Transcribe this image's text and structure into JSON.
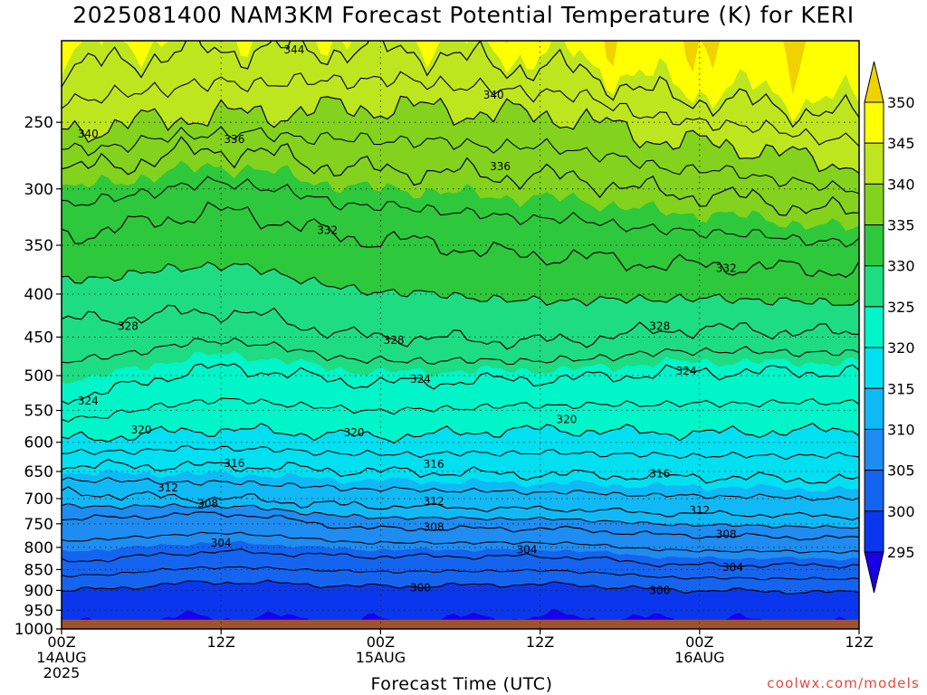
{
  "chart_data": {
    "type": "heatmap",
    "title": "2025081400 NAM3KM Forecast Potential Temperature (K) for KERI",
    "xlabel": "Forecast Time (UTC)",
    "ylabel": "",
    "x_ticks": [
      {
        "hour": 0,
        "lines": [
          "00Z",
          "14AUG",
          "2025"
        ]
      },
      {
        "hour": 12,
        "lines": [
          "12Z"
        ]
      },
      {
        "hour": 24,
        "lines": [
          "00Z",
          "15AUG"
        ]
      },
      {
        "hour": 36,
        "lines": [
          "12Z"
        ]
      },
      {
        "hour": 48,
        "lines": [
          "00Z",
          "16AUG"
        ]
      },
      {
        "hour": 60,
        "lines": [
          "12Z"
        ]
      }
    ],
    "xlim": [
      0,
      60
    ],
    "y_ticks": [
      250,
      300,
      350,
      400,
      450,
      500,
      550,
      600,
      650,
      700,
      750,
      800,
      850,
      900,
      950,
      1000
    ],
    "ylim": [
      1000,
      200
    ],
    "y_scale": "log-pressure",
    "grid": true,
    "surface_pressure": 975,
    "colorbar": {
      "levels": [
        295,
        300,
        305,
        310,
        315,
        320,
        325,
        330,
        335,
        340,
        345,
        350
      ],
      "colors": [
        "#1a00e6",
        "#0a37ee",
        "#1464f0",
        "#1e8cf0",
        "#10b9f5",
        "#00e0f0",
        "#00f5c8",
        "#1edc82",
        "#2dc83c",
        "#82d21e",
        "#bee61e",
        "#ffff00",
        "#f0d200"
      ]
    },
    "isentropes": [
      {
        "theta": 300,
        "pressure_at": {
          "h0": 900,
          "h12": 880,
          "h24": 890,
          "h36": 885,
          "h48": 900,
          "h60": 905
        }
      },
      {
        "theta": 304,
        "pressure_at": {
          "h0": 830,
          "h12": 810,
          "h24": 820,
          "h36": 820,
          "h48": 840,
          "h60": 840
        }
      },
      {
        "theta": 308,
        "pressure_at": {
          "h0": 740,
          "h12": 730,
          "h24": 760,
          "h36": 760,
          "h48": 775,
          "h60": 780
        }
      },
      {
        "theta": 312,
        "pressure_at": {
          "h0": 690,
          "h12": 700,
          "h24": 715,
          "h36": 720,
          "h48": 730,
          "h60": 735
        }
      },
      {
        "theta": 316,
        "pressure_at": {
          "h0": 640,
          "h12": 640,
          "h24": 650,
          "h36": 655,
          "h48": 660,
          "h60": 665
        }
      },
      {
        "theta": 320,
        "pressure_at": {
          "h0": 595,
          "h12": 580,
          "h24": 590,
          "h36": 580,
          "h48": 585,
          "h60": 580
        }
      },
      {
        "theta": 324,
        "pressure_at": {
          "h0": 530,
          "h12": 490,
          "h24": 510,
          "h36": 505,
          "h48": 495,
          "h60": 495
        }
      },
      {
        "theta": 328,
        "pressure_at": {
          "h0": 430,
          "h12": 420,
          "h24": 450,
          "h36": 455,
          "h48": 440,
          "h60": 445
        }
      },
      {
        "theta": 332,
        "pressure_at": {
          "h0": 340,
          "h12": 320,
          "h24": 345,
          "h36": 360,
          "h48": 370,
          "h60": 375
        }
      },
      {
        "theta": 336,
        "pressure_at": {
          "h0": 285,
          "h12": 270,
          "h24": 285,
          "h36": 290,
          "h48": 305,
          "h60": 320
        }
      },
      {
        "theta": 340,
        "pressure_at": {
          "h0": 255,
          "h12": 245,
          "h24": 240,
          "h36": 245,
          "h48": 265,
          "h60": 280
        }
      },
      {
        "theta": 344,
        "pressure_at": {
          "h0": 215,
          "h12": 205,
          "h24": 205,
          "h36": 215,
          "h48": 235,
          "h60": 245
        }
      }
    ],
    "contour_labels": [
      {
        "text": "344",
        "hour": 17.5,
        "p": 205
      },
      {
        "text": "340",
        "hour": 2,
        "p": 258
      },
      {
        "text": "336",
        "hour": 13,
        "p": 262
      },
      {
        "text": "340",
        "hour": 32.5,
        "p": 232
      },
      {
        "text": "336",
        "hour": 33,
        "p": 282
      },
      {
        "text": "332",
        "hour": 20,
        "p": 336
      },
      {
        "text": "332",
        "hour": 50,
        "p": 373
      },
      {
        "text": "328",
        "hour": 5,
        "p": 437
      },
      {
        "text": "328",
        "hour": 25,
        "p": 454
      },
      {
        "text": "328",
        "hour": 45,
        "p": 437
      },
      {
        "text": "324",
        "hour": 2,
        "p": 536
      },
      {
        "text": "324",
        "hour": 27,
        "p": 505
      },
      {
        "text": "324",
        "hour": 47,
        "p": 494
      },
      {
        "text": "320",
        "hour": 6,
        "p": 580
      },
      {
        "text": "320",
        "hour": 22,
        "p": 584
      },
      {
        "text": "320",
        "hour": 38,
        "p": 564
      },
      {
        "text": "316",
        "hour": 13,
        "p": 636
      },
      {
        "text": "316",
        "hour": 28,
        "p": 637
      },
      {
        "text": "316",
        "hour": 45,
        "p": 654
      },
      {
        "text": "312",
        "hour": 8,
        "p": 680
      },
      {
        "text": "312",
        "hour": 28,
        "p": 705
      },
      {
        "text": "312",
        "hour": 48,
        "p": 723
      },
      {
        "text": "308",
        "hour": 11,
        "p": 710
      },
      {
        "text": "308",
        "hour": 28,
        "p": 757
      },
      {
        "text": "308",
        "hour": 50,
        "p": 772
      },
      {
        "text": "304",
        "hour": 12,
        "p": 790
      },
      {
        "text": "304",
        "hour": 35,
        "p": 805
      },
      {
        "text": "304",
        "hour": 50.5,
        "p": 845
      },
      {
        "text": "300",
        "hour": 27,
        "p": 894
      },
      {
        "text": "300",
        "hour": 45,
        "p": 900
      }
    ]
  },
  "credit": "coolwx.com/models"
}
